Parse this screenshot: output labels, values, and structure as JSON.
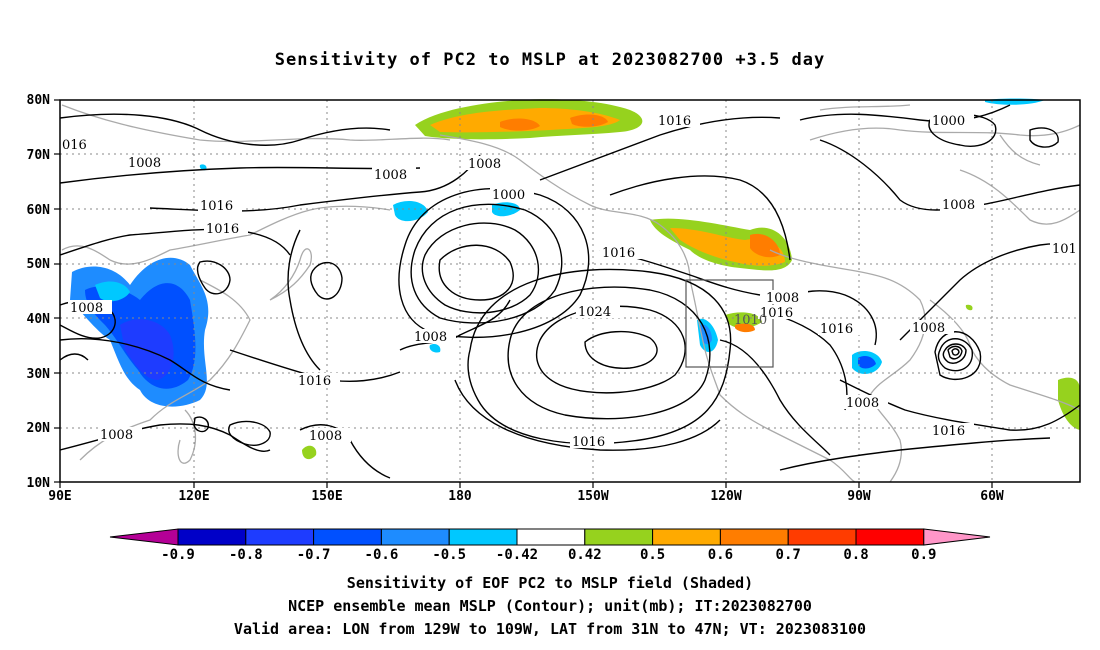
{
  "title": "Sensitivity of PC2 to MSLP at 2023082700 +3.5 day",
  "map": {
    "lat_ticks": [
      "10N",
      "20N",
      "30N",
      "40N",
      "50N",
      "60N",
      "70N",
      "80N"
    ],
    "lon_ticks": [
      "90E",
      "120E",
      "150E",
      "180",
      "150W",
      "120W",
      "90W",
      "60W"
    ],
    "lon_range": [
      "90E",
      "~40W"
    ],
    "lat_range": [
      "10N",
      "80N"
    ],
    "contour_labels": [
      "1008",
      "1016",
      "1000",
      "1024"
    ],
    "contour_interval_mb": 4,
    "colors": {
      "coastline": "#aaaaaa",
      "contour": "#000000",
      "grid": "#888888",
      "box": "#555555"
    }
  },
  "colorbar": {
    "labels": [
      "-0.9",
      "-0.8",
      "-0.7",
      "-0.6",
      "-0.5",
      "-0.42",
      "0.42",
      "0.5",
      "0.6",
      "0.7",
      "0.8",
      "0.9"
    ],
    "colors": [
      "#b40096",
      "#0000c8",
      "#1e3cff",
      "#0050ff",
      "#1e8cff",
      "#00c8ff",
      "#ffffff",
      "#96d21e",
      "#ffaa00",
      "#ff7d00",
      "#ff3c00",
      "#ff0000",
      "#ff96c8"
    ]
  },
  "footer": {
    "line1": "Sensitivity of EOF PC2 to MSLP field (Shaded)",
    "line2": "NCEP ensemble mean MSLP (Contour); unit(mb); IT:2023082700",
    "line3": "Valid area: LON from 129W to 109W, LAT from 31N to 47N; VT: 2023083100"
  }
}
